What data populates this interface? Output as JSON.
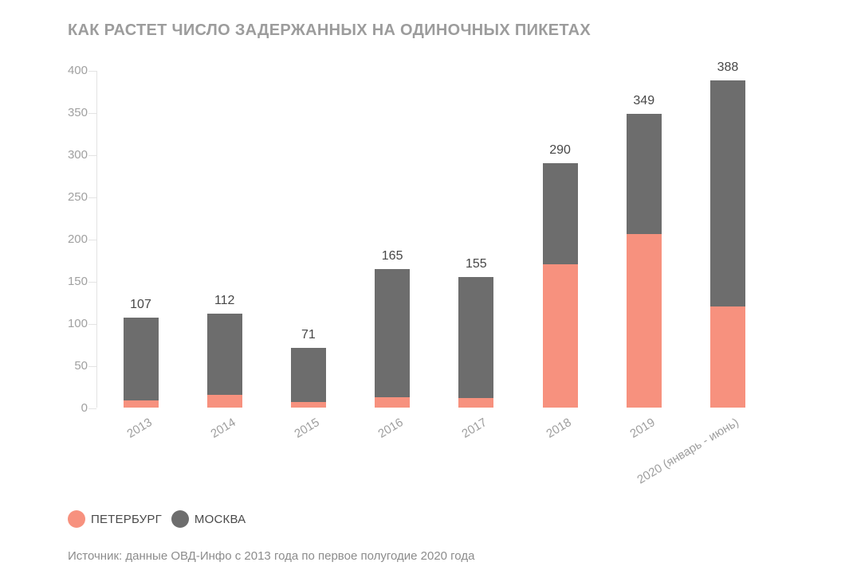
{
  "title": "КАК РАСТЕТ ЧИСЛО ЗАДЕРЖАННЫХ НА ОДИНОЧНЫХ ПИКЕТАХ",
  "source": "Источник: данные ОВД-Инфо с 2013 года по первое полугодие 2020 года",
  "colors": {
    "petersburg": "#f7917e",
    "moscow": "#6d6d6d",
    "title": "#9c9c9c",
    "axis_line": "#e3e3e3",
    "tick_label": "#a0a0a0",
    "value_label": "#474747",
    "source_text": "#8c8c8c"
  },
  "chart_data": {
    "type": "bar",
    "stacked": true,
    "title": "КАК РАСТЕТ ЧИСЛО ЗАДЕРЖАННЫХ НА ОДИНОЧНЫХ ПИКЕТАХ",
    "categories": [
      "2013",
      "2014",
      "2015",
      "2016",
      "2017",
      "2018",
      "2019",
      "2020 (январь - июнь)"
    ],
    "series": [
      {
        "name": "ПЕТЕРБУРГ",
        "color": "#f7917e",
        "values": [
          9,
          16,
          7,
          13,
          12,
          170,
          206,
          120
        ]
      },
      {
        "name": "МОСКВА",
        "color": "#6d6d6d",
        "values": [
          98,
          96,
          64,
          152,
          143,
          120,
          143,
          268
        ]
      }
    ],
    "totals": [
      107,
      112,
      71,
      165,
      155,
      290,
      349,
      388
    ],
    "y_ticks": [
      0,
      50,
      100,
      150,
      200,
      250,
      300,
      350,
      400
    ],
    "ylim": [
      0,
      400
    ],
    "xlabel": "",
    "ylabel": "",
    "grid": false,
    "legend_position": "bottom-left",
    "source": "Источник: данные ОВД-Инфо с 2013 года по первое полугодие 2020 года"
  }
}
